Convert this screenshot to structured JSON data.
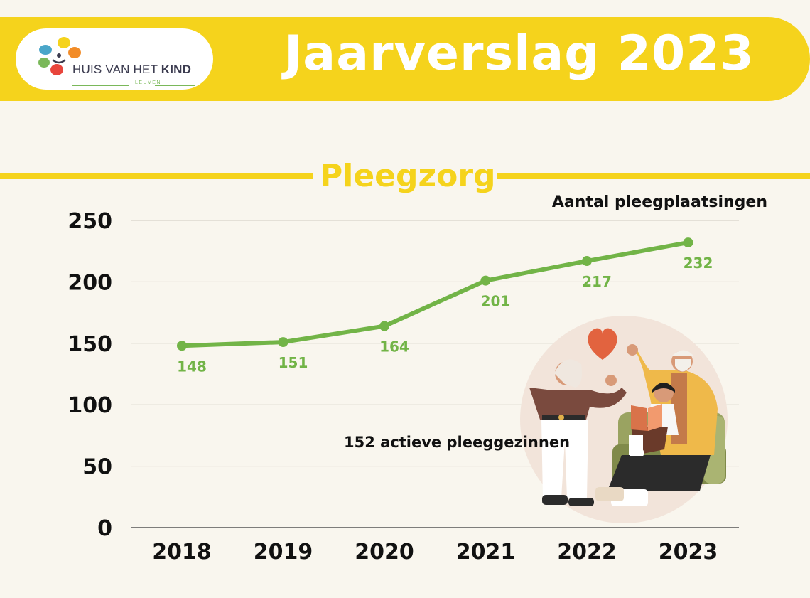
{
  "header": {
    "logo_text_regular": "HUIS VAN HET ",
    "logo_text_bold": "KIND",
    "logo_sub": "LEUVEN",
    "title": "Jaarverslag 2023"
  },
  "section": {
    "title": "Pleegzorg"
  },
  "chart_data": {
    "type": "line",
    "title": "Aantal pleegplaatsingen",
    "categories": [
      "2018",
      "2019",
      "2020",
      "2021",
      "2022",
      "2023"
    ],
    "values": [
      148,
      151,
      164,
      201,
      217,
      232
    ],
    "yticks": [
      0,
      50,
      100,
      150,
      200,
      250
    ],
    "ylim": [
      0,
      250
    ],
    "xlabel": "",
    "ylabel": "",
    "grid": true,
    "data_labels": true,
    "line_color": "#72b447",
    "label_color": "#72b447",
    "annotation": "152 actieve pleeggezinnen"
  },
  "colors": {
    "accent_yellow": "#f5d31c",
    "background": "#f9f6ee",
    "line_green": "#72b447"
  },
  "illustration": {
    "icon": "family-illustration"
  }
}
